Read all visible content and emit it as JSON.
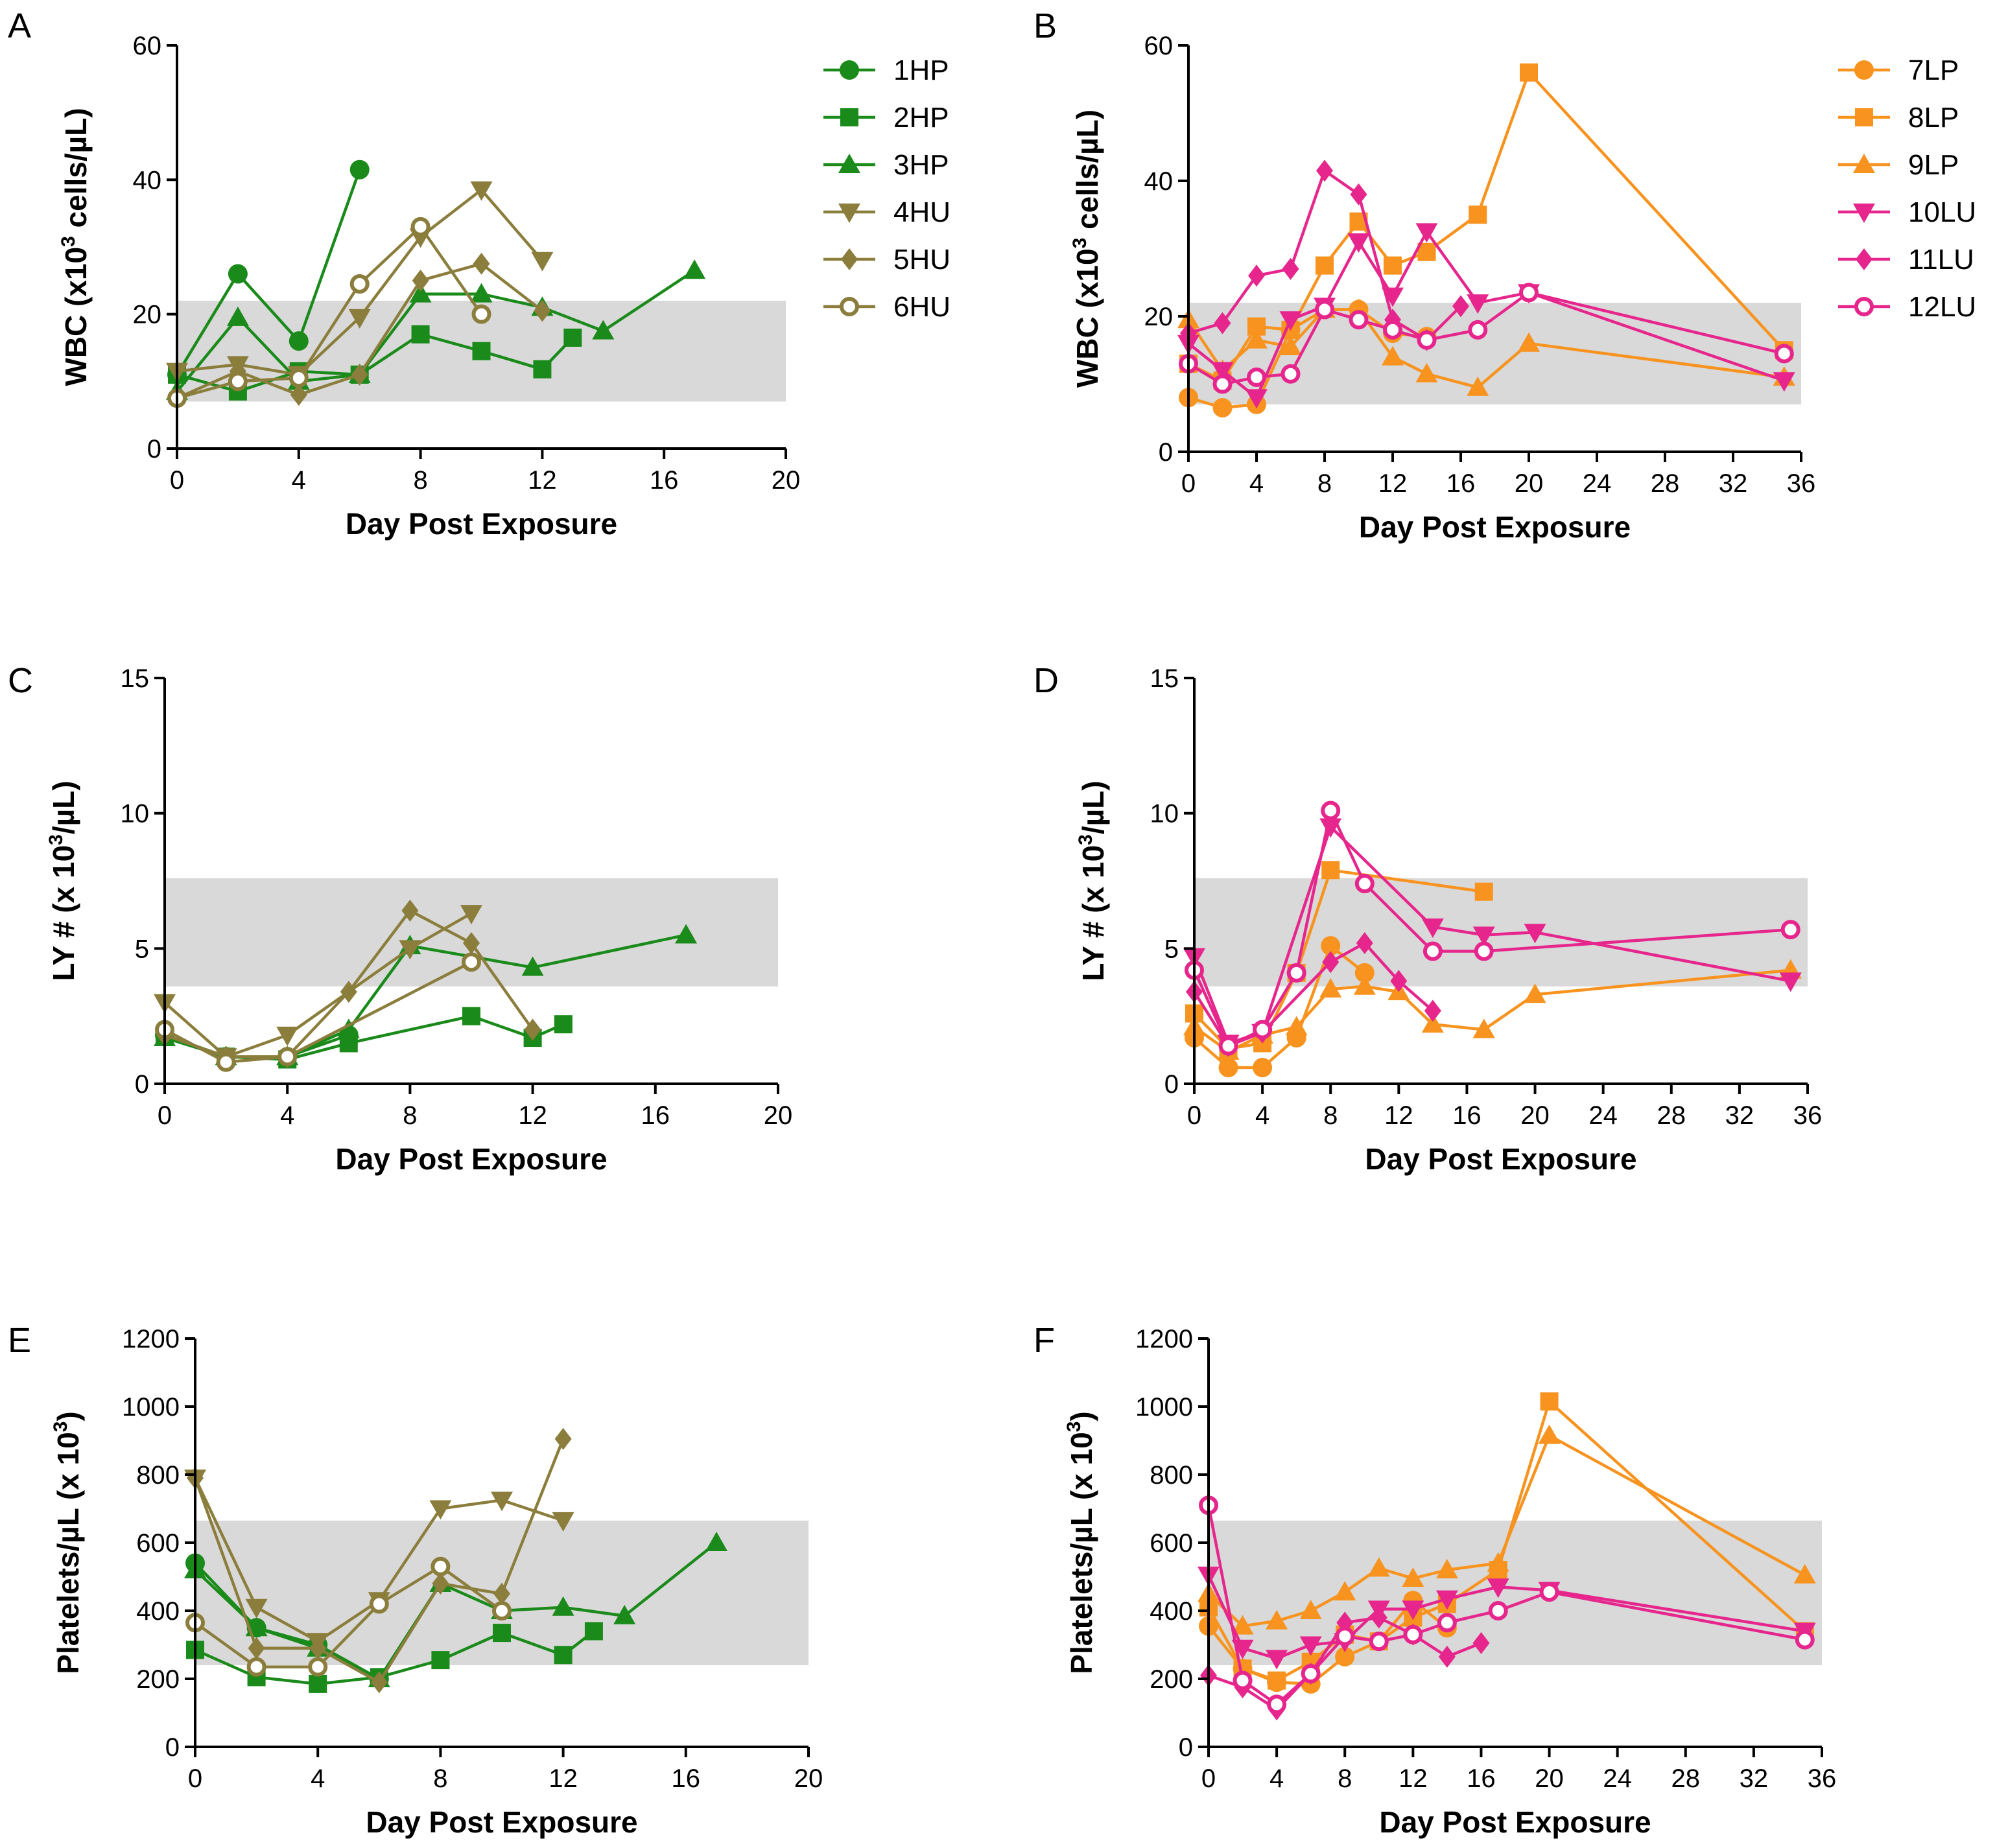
{
  "colors": {
    "green": "#1a8a1a",
    "olive": "#8b7d3c",
    "orange": "#f7931e",
    "pink": "#e6268c",
    "band": "#d9d9d9"
  },
  "chart_data": [
    {
      "id": "A",
      "letter": "A",
      "type": "line",
      "xlabel": "Day Post Exposure",
      "ylabel_parts": [
        "WBC (x10",
        "3",
        " cells/µL)"
      ],
      "xlim": [
        0,
        20
      ],
      "ylim": [
        0,
        60
      ],
      "xticks": [
        0,
        4,
        8,
        12,
        16,
        20
      ],
      "yticks": [
        0,
        20,
        40,
        60
      ],
      "normal_range": [
        7,
        22
      ],
      "legend_position": "right",
      "series": [
        {
          "name": "1HP",
          "color": "#1a8a1a",
          "marker": "circle",
          "x": [
            0,
            2,
            4,
            6
          ],
          "y": [
            11,
            26,
            16,
            41.5
          ]
        },
        {
          "name": "2HP",
          "color": "#1a8a1a",
          "marker": "square",
          "x": [
            0,
            2,
            4,
            6,
            8,
            10,
            12,
            13
          ],
          "y": [
            11,
            8.5,
            11.5,
            11,
            17,
            14.5,
            11.8,
            16.5
          ]
        },
        {
          "name": "3HP",
          "color": "#1a8a1a",
          "marker": "triangle-up",
          "x": [
            0,
            2,
            4,
            6,
            8,
            10,
            12,
            14,
            17
          ],
          "y": [
            8.5,
            19.5,
            10,
            11,
            23,
            23,
            21,
            17.5,
            26.5
          ]
        },
        {
          "name": "4HU",
          "color": "#8b7d3c",
          "marker": "triangle-down",
          "x": [
            0,
            2,
            4,
            6,
            8,
            10,
            12
          ],
          "y": [
            11.5,
            12.5,
            11,
            19.5,
            31.5,
            38.5,
            28
          ]
        },
        {
          "name": "5HU",
          "color": "#8b7d3c",
          "marker": "diamond",
          "x": [
            0,
            2,
            4,
            6,
            8,
            10,
            12
          ],
          "y": [
            7.5,
            11.5,
            8,
            11,
            25,
            27.5,
            20.5
          ]
        },
        {
          "name": "6HU",
          "color": "#8b7d3c",
          "marker": "circle-open",
          "x": [
            0,
            2,
            4,
            6,
            8,
            10
          ],
          "y": [
            7.5,
            10,
            10.5,
            24.5,
            33,
            20
          ]
        }
      ]
    },
    {
      "id": "B",
      "letter": "B",
      "type": "line",
      "xlabel": "Day Post Exposure",
      "ylabel_parts": [
        "WBC (x10",
        "3",
        " cells/µL)"
      ],
      "xlim": [
        0,
        36
      ],
      "ylim": [
        0,
        60
      ],
      "xticks": [
        0,
        4,
        8,
        12,
        16,
        20,
        24,
        28,
        32,
        36
      ],
      "yticks": [
        0,
        20,
        40,
        60
      ],
      "normal_range": [
        7,
        22
      ],
      "legend_position": "right",
      "series": [
        {
          "name": "7LP",
          "color": "#f7931e",
          "marker": "circle",
          "x": [
            0,
            2,
            4,
            6,
            8,
            10,
            12,
            14
          ],
          "y": [
            8,
            6.5,
            7,
            18,
            21,
            21,
            17.5,
            17
          ]
        },
        {
          "name": "8LP",
          "color": "#f7931e",
          "marker": "square",
          "x": [
            0,
            2,
            4,
            6,
            8,
            10,
            12,
            14,
            17,
            20,
            35
          ],
          "y": [
            13,
            10.5,
            18.5,
            18,
            27.5,
            34,
            27.5,
            29.5,
            35,
            56,
            15
          ]
        },
        {
          "name": "9LP",
          "color": "#f7931e",
          "marker": "triangle-up",
          "x": [
            0,
            2,
            4,
            6,
            8,
            10,
            12,
            14,
            17,
            20,
            35
          ],
          "y": [
            19.5,
            12,
            16.5,
            15.5,
            21,
            21,
            14,
            11.5,
            9.5,
            16,
            11
          ]
        },
        {
          "name": "10LU",
          "color": "#e6268c",
          "marker": "triangle-down",
          "x": [
            0,
            2,
            4,
            6,
            8,
            10,
            12,
            14,
            17,
            20,
            35
          ],
          "y": [
            16,
            12,
            8,
            19.5,
            21.5,
            31,
            23,
            32.5,
            22,
            23.5,
            10.5
          ]
        },
        {
          "name": "11LU",
          "color": "#e6268c",
          "marker": "diamond",
          "x": [
            0,
            2,
            4,
            6,
            8,
            10,
            12,
            14,
            16
          ],
          "y": [
            17.5,
            19,
            26,
            27,
            41.5,
            38,
            19.5,
            16.5,
            21.5
          ]
        },
        {
          "name": "12LU",
          "color": "#e6268c",
          "marker": "circle-open",
          "x": [
            0,
            2,
            4,
            6,
            8,
            10,
            12,
            14,
            17,
            20,
            35
          ],
          "y": [
            13,
            10,
            11,
            11.5,
            21,
            19.5,
            18,
            16.5,
            18,
            23.5,
            14.5
          ]
        }
      ]
    },
    {
      "id": "C",
      "letter": "C",
      "type": "line",
      "xlabel": "Day Post Exposure",
      "ylabel_parts": [
        "LY # (x 10",
        "3",
        "/µL)"
      ],
      "xlim": [
        0,
        20
      ],
      "ylim": [
        0,
        15
      ],
      "xticks": [
        0,
        4,
        8,
        12,
        16,
        20
      ],
      "yticks": [
        0,
        5,
        10,
        15
      ],
      "normal_range": [
        3.6,
        7.6
      ],
      "series": [
        {
          "name": "1HP",
          "color": "#1a8a1a",
          "marker": "circle",
          "x": [
            0,
            2,
            4,
            6
          ],
          "y": [
            1.8,
            1.0,
            1.0,
            1.8
          ]
        },
        {
          "name": "2HP",
          "color": "#1a8a1a",
          "marker": "square",
          "x": [
            0,
            2,
            4,
            6,
            10,
            12,
            13
          ],
          "y": [
            1.8,
            1.0,
            0.9,
            1.5,
            2.5,
            1.7,
            2.2
          ]
        },
        {
          "name": "3HP",
          "color": "#1a8a1a",
          "marker": "triangle-up",
          "x": [
            0,
            2,
            4,
            6,
            8,
            12,
            17
          ],
          "y": [
            1.7,
            1.0,
            1.0,
            2.0,
            5.1,
            4.3,
            5.5
          ]
        },
        {
          "name": "4HU",
          "color": "#8b7d3c",
          "marker": "triangle-down",
          "x": [
            0,
            2,
            4,
            8,
            10
          ],
          "y": [
            3.0,
            1.0,
            1.8,
            5.0,
            6.3
          ]
        },
        {
          "name": "5HU",
          "color": "#8b7d3c",
          "marker": "diamond",
          "x": [
            0,
            2,
            4,
            6,
            8,
            10,
            12
          ],
          "y": [
            1.8,
            1.0,
            1.0,
            3.4,
            6.4,
            5.2,
            2.0
          ]
        },
        {
          "name": "6HU",
          "color": "#8b7d3c",
          "marker": "circle-open",
          "x": [
            0,
            2,
            4,
            10
          ],
          "y": [
            2.0,
            0.8,
            1.0,
            4.5
          ]
        }
      ]
    },
    {
      "id": "D",
      "letter": "D",
      "type": "line",
      "xlabel": "Day Post Exposure",
      "ylabel_parts": [
        "LY # (x 10",
        "3",
        "/µL)"
      ],
      "xlim": [
        0,
        36
      ],
      "ylim": [
        0,
        15
      ],
      "xticks": [
        0,
        4,
        8,
        12,
        16,
        20,
        24,
        28,
        32,
        36
      ],
      "yticks": [
        0,
        5,
        10,
        15
      ],
      "normal_range": [
        3.6,
        7.6
      ],
      "series": [
        {
          "name": "7LP",
          "color": "#f7931e",
          "marker": "circle",
          "x": [
            0,
            2,
            4,
            6,
            8,
            10
          ],
          "y": [
            1.7,
            0.6,
            0.6,
            1.7,
            5.1,
            4.1
          ]
        },
        {
          "name": "8LP",
          "color": "#f7931e",
          "marker": "square",
          "x": [
            0,
            2,
            4,
            6,
            8,
            17
          ],
          "y": [
            2.6,
            1.3,
            1.5,
            4.1,
            7.9,
            7.1
          ]
        },
        {
          "name": "9LP",
          "color": "#f7931e",
          "marker": "triangle-up",
          "x": [
            0,
            2,
            4,
            6,
            8,
            10,
            12,
            14,
            17,
            20,
            35
          ],
          "y": [
            2.1,
            1.2,
            1.8,
            2.1,
            3.5,
            3.6,
            3.4,
            2.2,
            2.0,
            3.3,
            4.2
          ]
        },
        {
          "name": "10LU",
          "color": "#e6268c",
          "marker": "triangle-down",
          "x": [
            0,
            2,
            4,
            8,
            14,
            17,
            20,
            35
          ],
          "y": [
            4.7,
            1.5,
            1.9,
            9.5,
            5.8,
            5.5,
            5.6,
            3.8
          ]
        },
        {
          "name": "11LU",
          "color": "#e6268c",
          "marker": "diamond",
          "x": [
            0,
            2,
            4,
            8,
            10,
            12,
            14
          ],
          "y": [
            3.4,
            1.4,
            1.9,
            4.5,
            5.2,
            3.8,
            2.7
          ]
        },
        {
          "name": "12LU",
          "color": "#e6268c",
          "marker": "circle-open",
          "x": [
            0,
            2,
            4,
            6,
            8,
            10,
            14,
            17,
            35
          ],
          "y": [
            4.2,
            1.4,
            2.0,
            4.1,
            10.1,
            7.4,
            4.9,
            4.9,
            5.7
          ]
        }
      ]
    },
    {
      "id": "E",
      "letter": "E",
      "type": "line",
      "xlabel": "Day Post Exposure",
      "ylabel_parts": [
        "Platelets/µL (x 10",
        "3",
        ")"
      ],
      "xlim": [
        0,
        20
      ],
      "ylim": [
        0,
        1200
      ],
      "xticks": [
        0,
        4,
        8,
        12,
        16,
        20
      ],
      "yticks": [
        0,
        200,
        400,
        600,
        800,
        1000,
        1200
      ],
      "normal_range": [
        240,
        665
      ],
      "series": [
        {
          "name": "1HP",
          "color": "#1a8a1a",
          "marker": "circle",
          "x": [
            0,
            2,
            4,
            6
          ],
          "y": [
            540,
            350,
            300,
            200
          ]
        },
        {
          "name": "2HP",
          "color": "#1a8a1a",
          "marker": "square",
          "x": [
            0,
            2,
            4,
            6,
            8,
            10,
            12,
            13
          ],
          "y": [
            285,
            205,
            185,
            205,
            255,
            335,
            270,
            340
          ]
        },
        {
          "name": "3HP",
          "color": "#1a8a1a",
          "marker": "triangle-up",
          "x": [
            0,
            2,
            4,
            6,
            8,
            10,
            12,
            14,
            17
          ],
          "y": [
            520,
            350,
            290,
            200,
            480,
            400,
            410,
            385,
            600
          ]
        },
        {
          "name": "4HU",
          "color": "#8b7d3c",
          "marker": "triangle-down",
          "x": [
            0,
            2,
            4,
            6,
            8,
            10,
            12
          ],
          "y": [
            790,
            410,
            310,
            430,
            700,
            725,
            665
          ]
        },
        {
          "name": "5HU",
          "color": "#8b7d3c",
          "marker": "diamond",
          "x": [
            0,
            2,
            4,
            6,
            8,
            10,
            12
          ],
          "y": [
            790,
            290,
            290,
            190,
            480,
            450,
            905
          ]
        },
        {
          "name": "6HU",
          "color": "#8b7d3c",
          "marker": "circle-open",
          "x": [
            0,
            2,
            4,
            6,
            8,
            10
          ],
          "y": [
            365,
            235,
            235,
            420,
            530,
            400
          ]
        }
      ]
    },
    {
      "id": "F",
      "letter": "F",
      "type": "line",
      "xlabel": "Day Post Exposure",
      "ylabel_parts": [
        "Platelets/µL (x 10",
        "3",
        ")"
      ],
      "xlim": [
        0,
        36
      ],
      "ylim": [
        0,
        1200
      ],
      "xticks": [
        0,
        4,
        8,
        12,
        16,
        20,
        24,
        28,
        32,
        36
      ],
      "yticks": [
        0,
        200,
        400,
        600,
        800,
        1000,
        1200
      ],
      "normal_range": [
        240,
        665
      ],
      "series": [
        {
          "name": "7LP",
          "color": "#f7931e",
          "marker": "circle",
          "x": [
            0,
            2,
            4,
            6,
            8,
            10,
            12,
            14
          ],
          "y": [
            355,
            230,
            190,
            185,
            265,
            310,
            430,
            350
          ]
        },
        {
          "name": "8LP",
          "color": "#f7931e",
          "marker": "square",
          "x": [
            0,
            2,
            4,
            6,
            8,
            10,
            12,
            14,
            17,
            20,
            35
          ],
          "y": [
            410,
            230,
            195,
            250,
            330,
            310,
            380,
            420,
            520,
            1015,
            340
          ]
        },
        {
          "name": "9LP",
          "color": "#f7931e",
          "marker": "triangle-up",
          "x": [
            0,
            2,
            4,
            6,
            8,
            10,
            12,
            14,
            17,
            20,
            35
          ],
          "y": [
            450,
            355,
            370,
            400,
            455,
            525,
            495,
            520,
            540,
            915,
            505
          ]
        },
        {
          "name": "10LU",
          "color": "#e6268c",
          "marker": "triangle-down",
          "x": [
            0,
            2,
            4,
            6,
            8,
            10,
            12,
            14,
            17,
            20,
            35
          ],
          "y": [
            505,
            290,
            260,
            300,
            310,
            405,
            405,
            435,
            470,
            460,
            340
          ]
        },
        {
          "name": "11LU",
          "color": "#e6268c",
          "marker": "diamond",
          "x": [
            0,
            2,
            4,
            6,
            8,
            10,
            12,
            14,
            16
          ],
          "y": [
            210,
            175,
            110,
            215,
            365,
            380,
            330,
            265,
            305
          ]
        },
        {
          "name": "12LU",
          "color": "#e6268c",
          "marker": "circle-open",
          "x": [
            0,
            2,
            4,
            6,
            8,
            10,
            12,
            14,
            17,
            20,
            35
          ],
          "y": [
            710,
            195,
            125,
            215,
            325,
            310,
            330,
            365,
            400,
            455,
            315
          ]
        }
      ]
    }
  ]
}
